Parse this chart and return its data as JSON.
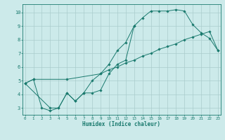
{
  "title": "",
  "xlabel": "Humidex (Indice chaleur)",
  "bg_color": "#cceaea",
  "grid_color": "#aacccc",
  "line_color": "#1a7a6e",
  "line1_x": [
    0,
    1,
    2,
    3,
    4,
    5,
    6,
    7,
    8,
    9,
    10,
    11,
    12,
    13,
    14,
    15,
    16,
    17,
    18,
    19,
    20,
    21,
    22,
    23
  ],
  "line1_y": [
    4.8,
    5.1,
    3.0,
    2.8,
    3.0,
    4.1,
    3.5,
    4.1,
    5.0,
    5.5,
    6.2,
    7.2,
    7.8,
    9.0,
    9.6,
    10.1,
    10.1,
    10.1,
    10.2,
    10.1,
    9.1,
    8.5,
    8.1,
    7.2
  ],
  "line2_x": [
    0,
    1,
    5,
    9,
    10,
    11,
    12,
    13,
    14,
    15,
    16,
    17,
    18,
    19,
    20,
    21,
    22,
    23
  ],
  "line2_y": [
    4.8,
    5.1,
    5.1,
    5.5,
    5.8,
    6.0,
    6.3,
    6.5,
    6.8,
    7.0,
    7.3,
    7.5,
    7.7,
    8.0,
    8.2,
    8.4,
    8.6,
    7.2
  ],
  "line3_x": [
    0,
    3,
    4,
    5,
    6,
    7,
    8,
    9,
    10,
    11,
    12,
    13
  ],
  "line3_y": [
    4.8,
    3.0,
    3.0,
    4.1,
    3.5,
    4.1,
    4.1,
    4.3,
    5.5,
    6.2,
    6.5,
    9.0
  ],
  "xlim": [
    -0.3,
    23.3
  ],
  "ylim": [
    2.5,
    10.6
  ],
  "yticks": [
    3,
    4,
    5,
    6,
    7,
    8,
    9,
    10
  ],
  "xticks": [
    0,
    1,
    2,
    3,
    4,
    5,
    6,
    7,
    8,
    9,
    10,
    11,
    12,
    13,
    14,
    15,
    16,
    17,
    18,
    19,
    20,
    21,
    22,
    23
  ]
}
